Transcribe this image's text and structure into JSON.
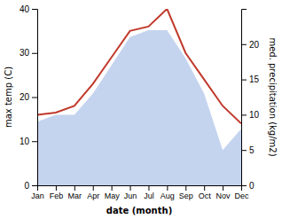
{
  "chart_data": {
    "type": "line",
    "xlabel": "date (month)",
    "ylabel": "max temp (C)",
    "y2label": "med. precipitation (kg/m2)",
    "categories": [
      "Jan",
      "Feb",
      "Mar",
      "Apr",
      "May",
      "Jun",
      "Jul",
      "Aug",
      "Sep",
      "Oct",
      "Nov",
      "Dec"
    ],
    "series": [
      {
        "type": "area",
        "axis": "y2",
        "color": "#c5d4ee",
        "values": [
          9,
          10,
          10,
          13,
          17,
          21,
          22,
          22,
          18,
          13,
          5,
          8
        ]
      },
      {
        "type": "line",
        "color": "#c0392b",
        "values": [
          16,
          16.5,
          18,
          23,
          29,
          35,
          36,
          40,
          30,
          24,
          18,
          14
        ]
      }
    ],
    "ylim": [
      0,
      40
    ],
    "yticks": [
      0,
      10,
      20,
      30,
      40
    ],
    "y2lim": [
      0,
      25
    ],
    "y2ticks": [
      0,
      5,
      10,
      15,
      20
    ],
    "grid": false
  }
}
